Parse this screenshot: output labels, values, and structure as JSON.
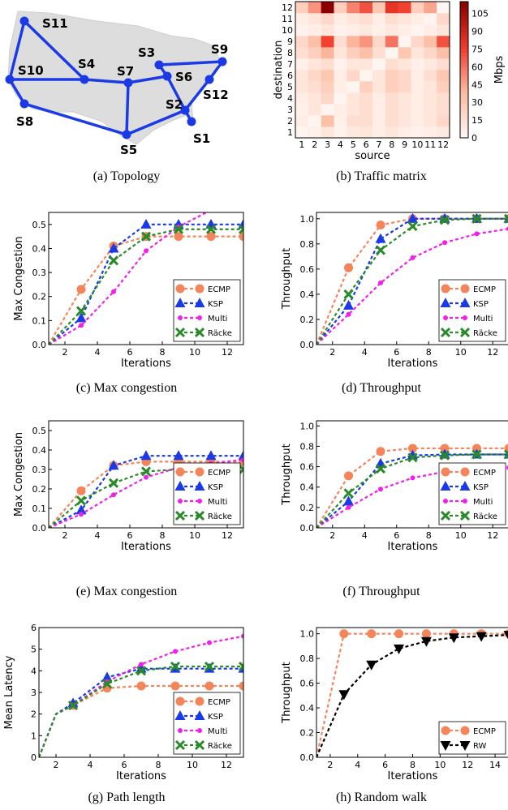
{
  "colors": {
    "ECMP": "#f4845a",
    "KSP": "#1a3ae6",
    "Multi": "#f020e8",
    "Racke": "#2a8a2a",
    "RW": "#000000",
    "link": "#1a3ae6",
    "land": "#dddddd",
    "heat_hi": "#8b0000"
  },
  "captions": {
    "a": "(a) Topology",
    "b": "(b) Traffic matrix",
    "c": "(c) Max congestion",
    "d": "(d) Throughput",
    "e": "(e) Max congestion",
    "f": "(f) Throughput",
    "g": "(g) Path length",
    "h": "(h) Random walk"
  },
  "topology": {
    "nodes": [
      "S1",
      "S2",
      "S3",
      "S4",
      "S5",
      "S6",
      "S7",
      "S8",
      "S9",
      "S10",
      "S11",
      "S12"
    ]
  },
  "chart_data": [
    {
      "id": "b",
      "type": "heatmap",
      "xlabel": "source",
      "ylabel": "destination",
      "colorbar_label": "Mbps",
      "x_ticks": [
        "1",
        "2",
        "3",
        "4",
        "5",
        "6",
        "7",
        "8",
        "9",
        "10",
        "11",
        "12"
      ],
      "y_ticks": [
        "1",
        "2",
        "3",
        "4",
        "5",
        "6",
        "7",
        "8",
        "9",
        "10",
        "11",
        "12"
      ],
      "colorbar_ticks": [
        0,
        15,
        30,
        45,
        60,
        75,
        90,
        105
      ],
      "vmax": 115,
      "values": [
        [
          0,
          3,
          10,
          2,
          8,
          10,
          5,
          10,
          5,
          2,
          5,
          8
        ],
        [
          5,
          0,
          35,
          3,
          15,
          15,
          5,
          15,
          10,
          5,
          10,
          20
        ],
        [
          3,
          10,
          0,
          5,
          10,
          15,
          5,
          15,
          10,
          5,
          10,
          15
        ],
        [
          5,
          10,
          20,
          0,
          10,
          15,
          5,
          15,
          10,
          5,
          10,
          15
        ],
        [
          10,
          15,
          25,
          5,
          0,
          25,
          10,
          25,
          20,
          5,
          10,
          25
        ],
        [
          10,
          20,
          30,
          5,
          20,
          0,
          10,
          25,
          20,
          5,
          15,
          30
        ],
        [
          3,
          10,
          15,
          2,
          10,
          10,
          0,
          15,
          10,
          3,
          8,
          15
        ],
        [
          15,
          25,
          40,
          10,
          25,
          35,
          15,
          0,
          30,
          10,
          20,
          35
        ],
        [
          20,
          35,
          75,
          15,
          40,
          50,
          20,
          60,
          0,
          20,
          35,
          70
        ],
        [
          2,
          5,
          10,
          2,
          5,
          8,
          3,
          8,
          5,
          0,
          5,
          10
        ],
        [
          5,
          10,
          20,
          5,
          10,
          15,
          5,
          15,
          10,
          5,
          0,
          20
        ],
        [
          25,
          50,
          115,
          25,
          55,
          70,
          30,
          80,
          75,
          25,
          45,
          0
        ]
      ]
    },
    {
      "id": "c",
      "type": "line",
      "xlabel": "Iterations",
      "ylabel": "Max Congestion",
      "xlim": [
        1,
        13
      ],
      "ylim": [
        0,
        0.55
      ],
      "x_ticks": [
        2,
        4,
        6,
        8,
        10,
        12
      ],
      "y_ticks": [
        0.0,
        0.1,
        0.2,
        0.3,
        0.4,
        0.5
      ],
      "legend": "bottom-right",
      "x": [
        1,
        3,
        5,
        7,
        9,
        11,
        13
      ],
      "series": [
        {
          "name": "ECMP",
          "values": [
            0,
            0.23,
            0.41,
            0.45,
            0.45,
            0.45,
            0.45
          ]
        },
        {
          "name": "KSP",
          "values": [
            0,
            0.11,
            0.4,
            0.5,
            0.5,
            0.5,
            0.5
          ]
        },
        {
          "name": "Multi",
          "values": [
            0,
            0.08,
            0.22,
            0.39,
            0.49,
            0.56,
            0.6
          ]
        },
        {
          "name": "Räcke",
          "values": [
            0,
            0.14,
            0.35,
            0.45,
            0.48,
            0.48,
            0.48
          ]
        }
      ]
    },
    {
      "id": "d",
      "type": "line",
      "xlabel": "Iterations",
      "ylabel": "Throughput",
      "xlim": [
        1,
        13
      ],
      "ylim": [
        0,
        1.05
      ],
      "x_ticks": [
        2,
        4,
        6,
        8,
        10,
        12
      ],
      "y_ticks": [
        0.0,
        0.2,
        0.4,
        0.6,
        0.8,
        1.0
      ],
      "legend": "bottom-right",
      "x": [
        1,
        3,
        5,
        7,
        9,
        11,
        13
      ],
      "series": [
        {
          "name": "ECMP",
          "values": [
            0,
            0.61,
            0.95,
            1.0,
            1.0,
            1.0,
            1.0
          ]
        },
        {
          "name": "KSP",
          "values": [
            0,
            0.31,
            0.84,
            1.0,
            1.0,
            1.0,
            1.0
          ]
        },
        {
          "name": "Multi",
          "values": [
            0,
            0.24,
            0.49,
            0.69,
            0.81,
            0.88,
            0.92
          ]
        },
        {
          "name": "Räcke",
          "values": [
            0,
            0.4,
            0.75,
            0.94,
            0.99,
            1.0,
            1.0
          ]
        }
      ]
    },
    {
      "id": "e",
      "type": "line",
      "xlabel": "Iterations",
      "ylabel": "Max Congestion",
      "xlim": [
        1,
        13
      ],
      "ylim": [
        0,
        0.55
      ],
      "x_ticks": [
        2,
        4,
        6,
        8,
        10,
        12
      ],
      "y_ticks": [
        0.0,
        0.1,
        0.2,
        0.3,
        0.4,
        0.5
      ],
      "legend": "bottom-right",
      "x": [
        1,
        3,
        5,
        7,
        9,
        11,
        13
      ],
      "series": [
        {
          "name": "ECMP",
          "values": [
            0,
            0.19,
            0.32,
            0.34,
            0.34,
            0.34,
            0.34
          ]
        },
        {
          "name": "KSP",
          "values": [
            0,
            0.09,
            0.32,
            0.37,
            0.37,
            0.37,
            0.37
          ]
        },
        {
          "name": "Multi",
          "values": [
            0,
            0.07,
            0.17,
            0.26,
            0.31,
            0.33,
            0.35
          ]
        },
        {
          "name": "Räcke",
          "values": [
            0,
            0.14,
            0.23,
            0.29,
            0.3,
            0.3,
            0.3
          ]
        }
      ]
    },
    {
      "id": "f",
      "type": "line",
      "xlabel": "Iterations",
      "ylabel": "Throughput",
      "xlim": [
        1,
        13
      ],
      "ylim": [
        0,
        1.05
      ],
      "x_ticks": [
        2,
        4,
        6,
        8,
        10,
        12
      ],
      "y_ticks": [
        0.0,
        0.2,
        0.4,
        0.6,
        0.8,
        1.0
      ],
      "legend": "bottom-right",
      "x": [
        1,
        3,
        5,
        7,
        9,
        11,
        13
      ],
      "series": [
        {
          "name": "ECMP",
          "values": [
            0,
            0.51,
            0.75,
            0.78,
            0.78,
            0.78,
            0.78
          ]
        },
        {
          "name": "KSP",
          "values": [
            0,
            0.26,
            0.63,
            0.71,
            0.72,
            0.72,
            0.72
          ]
        },
        {
          "name": "Multi",
          "values": [
            0,
            0.2,
            0.38,
            0.49,
            0.55,
            0.58,
            0.59
          ]
        },
        {
          "name": "Räcke",
          "values": [
            0,
            0.34,
            0.58,
            0.69,
            0.71,
            0.72,
            0.72
          ]
        }
      ]
    },
    {
      "id": "g",
      "type": "line",
      "xlabel": "Iterations",
      "ylabel": "Mean Latency",
      "xlim": [
        1,
        13
      ],
      "ylim": [
        0,
        6
      ],
      "x_ticks": [
        2,
        4,
        6,
        8,
        10,
        12
      ],
      "y_ticks": [
        0,
        1,
        2,
        3,
        4,
        5,
        6
      ],
      "legend": "bottom-right",
      "x": [
        1,
        2,
        3,
        5,
        7,
        9,
        11,
        13
      ],
      "series": [
        {
          "name": "ECMP",
          "values": [
            0,
            2.0,
            2.4,
            3.2,
            3.3,
            3.3,
            3.3,
            3.3
          ]
        },
        {
          "name": "KSP",
          "values": [
            0,
            2.0,
            2.5,
            3.7,
            4.1,
            4.1,
            4.1,
            4.1
          ]
        },
        {
          "name": "Multi",
          "values": [
            0,
            2.0,
            2.4,
            3.5,
            4.3,
            4.9,
            5.3,
            5.6
          ]
        },
        {
          "name": "Räcke",
          "values": [
            0,
            2.0,
            2.4,
            3.4,
            4.0,
            4.2,
            4.2,
            4.2
          ]
        }
      ]
    },
    {
      "id": "h",
      "type": "line",
      "xlabel": "Iterations",
      "ylabel": "Throughput",
      "xlim": [
        1,
        15
      ],
      "ylim": [
        0,
        1.05
      ],
      "x_ticks": [
        2,
        4,
        6,
        8,
        10,
        12,
        14
      ],
      "y_ticks": [
        0.0,
        0.2,
        0.4,
        0.6,
        0.8,
        1.0
      ],
      "legend": "bottom-right",
      "x": [
        1,
        3,
        5,
        7,
        9,
        11,
        13,
        15
      ],
      "series": [
        {
          "name": "ECMP",
          "values": [
            0,
            1.0,
            1.0,
            1.0,
            1.0,
            1.0,
            1.0,
            1.0
          ]
        },
        {
          "name": "RW",
          "values": [
            0,
            0.51,
            0.75,
            0.88,
            0.94,
            0.97,
            0.98,
            0.99
          ]
        }
      ]
    }
  ]
}
